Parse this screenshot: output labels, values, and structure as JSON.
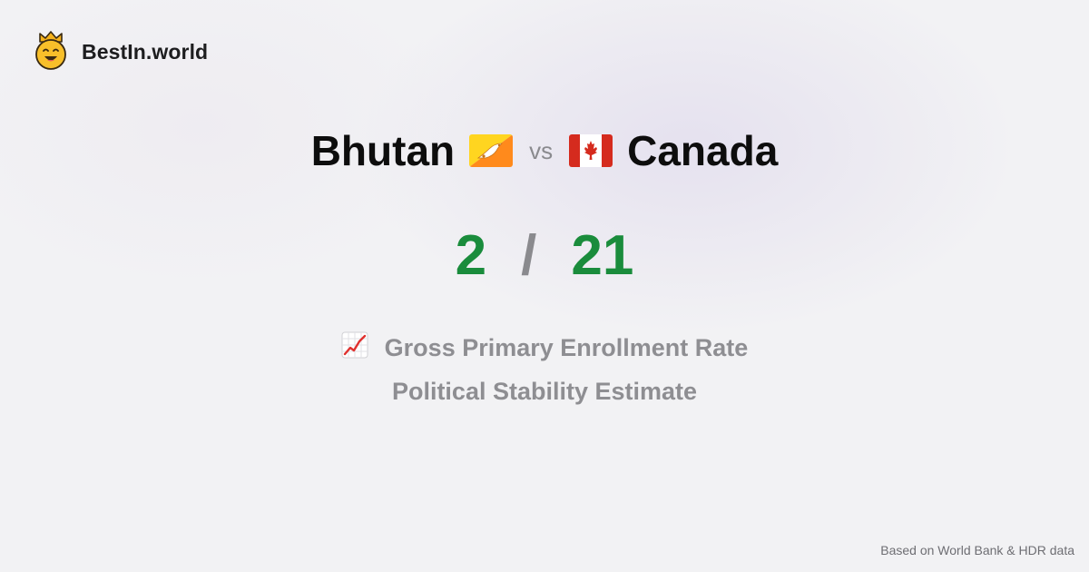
{
  "brand": {
    "name": "BestIn.world",
    "logo_icon": "crowned-smiley-icon"
  },
  "comparison": {
    "left_country": "Bhutan",
    "left_flag_icon": "bhutan-flag-icon",
    "vs_label": "vs",
    "right_country": "Canada",
    "right_flag_icon": "canada-flag-icon"
  },
  "score": {
    "left": "2",
    "separator": "/",
    "right": "21",
    "color": "#1a8c3c"
  },
  "metrics": [
    {
      "label": "Gross Primary Enrollment Rate",
      "icon": "chart-increasing-icon"
    },
    {
      "label": "Political Stability Estimate"
    }
  ],
  "footer": {
    "source_note": "Based on World Bank & HDR data"
  }
}
